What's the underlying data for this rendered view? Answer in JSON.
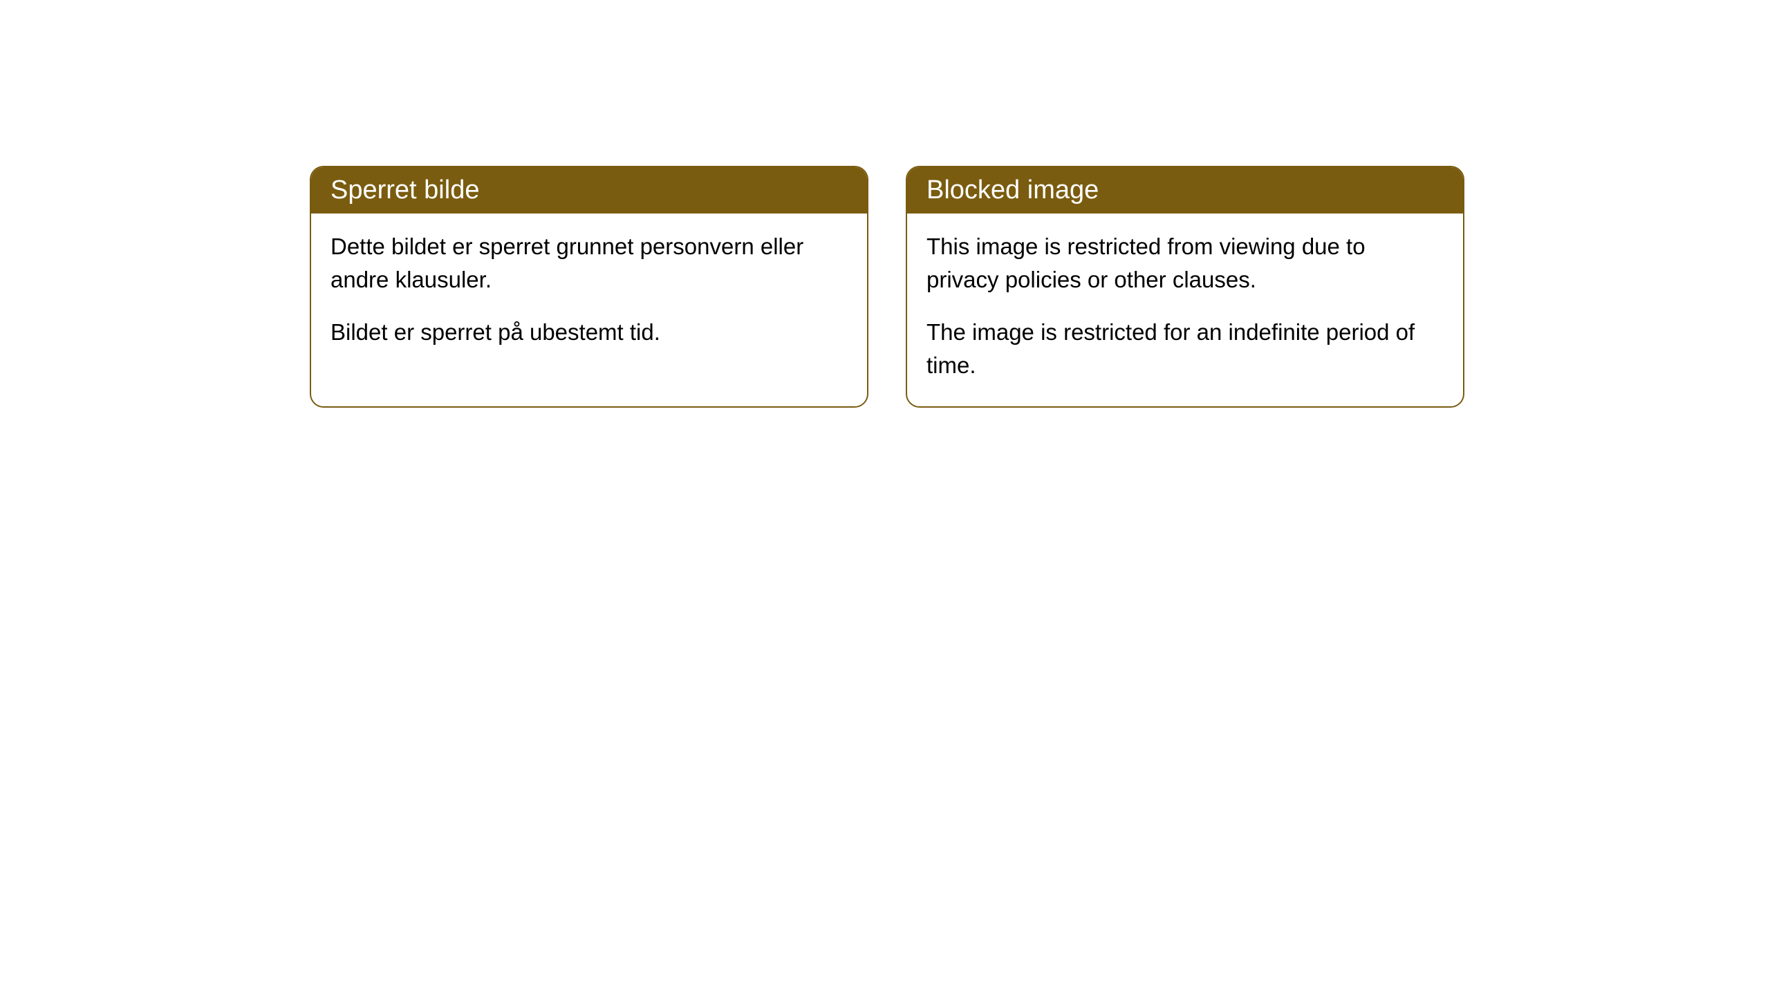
{
  "cards": [
    {
      "title": "Sperret bilde",
      "paragraph1": "Dette bildet er sperret grunnet personvern eller andre klausuler.",
      "paragraph2": "Bildet er sperret på ubestemt tid."
    },
    {
      "title": "Blocked image",
      "paragraph1": "This image is restricted from viewing due to privacy policies or other clauses.",
      "paragraph2": "The image is restricted for an indefinite period of time."
    }
  ],
  "styling": {
    "header_background": "#7a5c10",
    "header_text_color": "#ffffff",
    "border_color": "#7a5c10",
    "body_background": "#ffffff",
    "body_text_color": "#000000",
    "border_radius": 20,
    "header_fontsize": 38,
    "body_fontsize": 33
  }
}
